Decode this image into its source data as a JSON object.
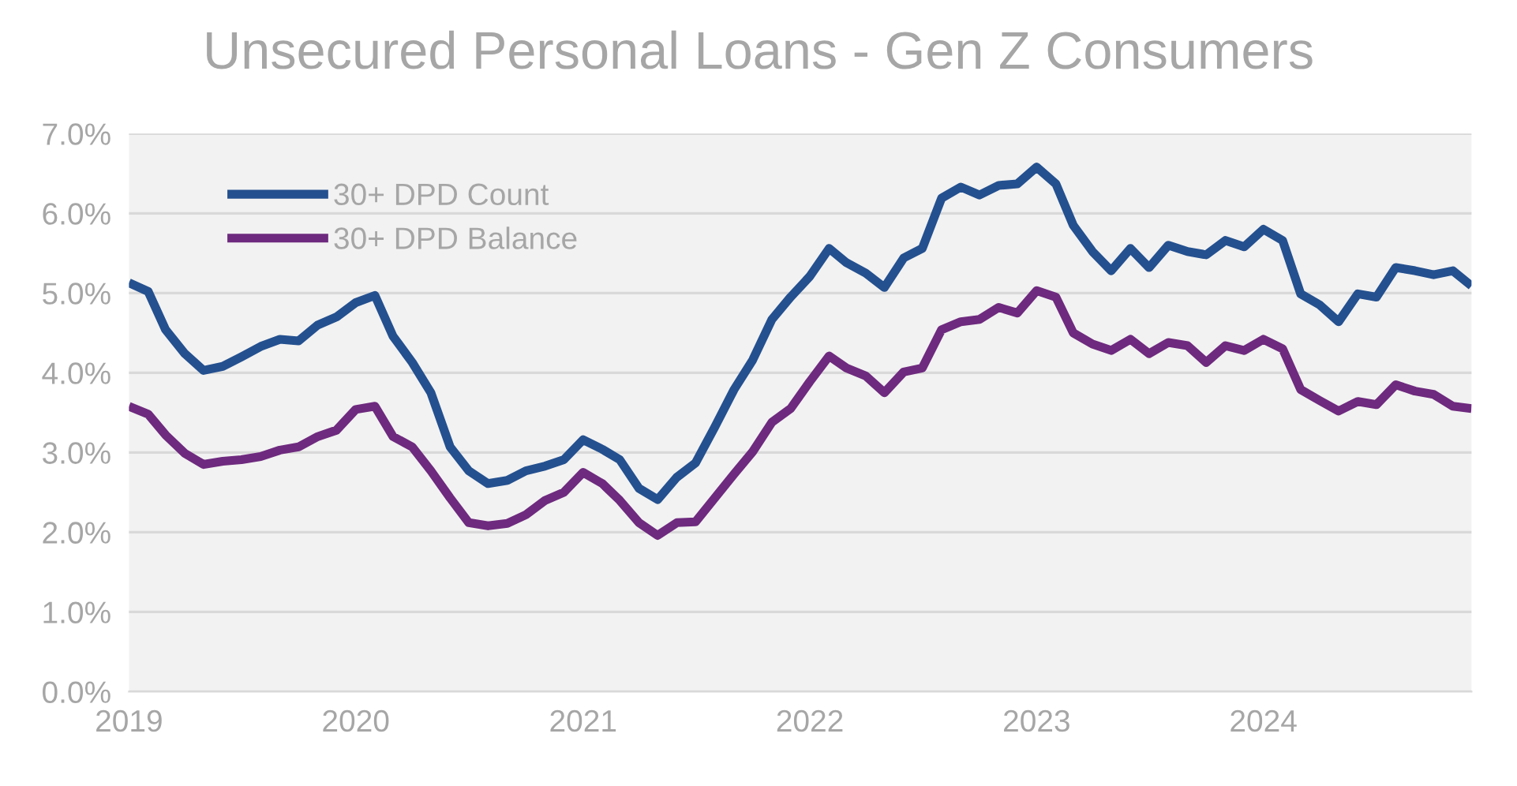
{
  "chart_data": {
    "type": "line",
    "title": "Unsecured Personal Loans - Gen Z Consumers",
    "x": [
      "2019-01",
      "2019-02",
      "2019-03",
      "2019-04",
      "2019-05",
      "2019-06",
      "2019-07",
      "2019-08",
      "2019-09",
      "2019-10",
      "2019-11",
      "2019-12",
      "2020-01",
      "2020-02",
      "2020-03",
      "2020-04",
      "2020-05",
      "2020-06",
      "2020-07",
      "2020-08",
      "2020-09",
      "2020-10",
      "2020-11",
      "2020-12",
      "2021-01",
      "2021-02",
      "2021-03",
      "2021-04",
      "2021-05",
      "2021-06",
      "2021-07",
      "2021-08",
      "2021-09",
      "2021-10",
      "2021-11",
      "2021-12",
      "2022-01",
      "2022-02",
      "2022-03",
      "2022-04",
      "2022-05",
      "2022-06",
      "2022-07",
      "2022-08",
      "2022-09",
      "2022-10",
      "2022-11",
      "2022-12",
      "2023-01",
      "2023-02",
      "2023-03",
      "2023-04",
      "2023-05",
      "2023-06",
      "2023-07",
      "2023-08",
      "2023-09",
      "2023-10",
      "2023-11",
      "2023-12",
      "2024-01",
      "2024-02",
      "2024-03",
      "2024-04",
      "2024-05",
      "2024-06",
      "2024-07",
      "2024-08",
      "2024-09",
      "2024-10",
      "2024-11",
      "2024-12"
    ],
    "series": [
      {
        "name": "30+ DPD Count",
        "color": "#24508f",
        "values": [
          5.13,
          5.02,
          4.54,
          4.24,
          4.03,
          4.08,
          4.2,
          4.33,
          4.42,
          4.4,
          4.6,
          4.7,
          4.88,
          4.97,
          4.46,
          4.13,
          3.75,
          3.07,
          2.77,
          2.61,
          2.65,
          2.77,
          2.83,
          2.91,
          3.16,
          3.04,
          2.91,
          2.55,
          2.41,
          2.69,
          2.87,
          3.32,
          3.79,
          4.16,
          4.67,
          4.95,
          5.21,
          5.56,
          5.38,
          5.25,
          5.07,
          5.44,
          5.56,
          6.19,
          6.33,
          6.23,
          6.35,
          6.37,
          6.58,
          6.37,
          5.85,
          5.52,
          5.28,
          5.56,
          5.32,
          5.6,
          5.52,
          5.48,
          5.66,
          5.58,
          5.8,
          5.66,
          4.99,
          4.85,
          4.64,
          4.99,
          4.95,
          5.32,
          5.28,
          5.23,
          5.28,
          5.09
        ]
      },
      {
        "name": "30+ DPD Balance",
        "color": "#6e2a7e",
        "values": [
          3.58,
          3.48,
          3.22,
          2.99,
          2.85,
          2.89,
          2.91,
          2.95,
          3.03,
          3.07,
          3.2,
          3.28,
          3.54,
          3.58,
          3.2,
          3.07,
          2.77,
          2.43,
          2.12,
          2.08,
          2.11,
          2.22,
          2.4,
          2.5,
          2.75,
          2.61,
          2.4,
          2.12,
          1.96,
          2.12,
          2.13,
          2.43,
          2.73,
          3.01,
          3.38,
          3.55,
          3.89,
          4.21,
          4.06,
          3.96,
          3.75,
          4.01,
          4.06,
          4.54,
          4.64,
          4.67,
          4.82,
          4.75,
          5.03,
          4.95,
          4.5,
          4.36,
          4.28,
          4.42,
          4.24,
          4.38,
          4.34,
          4.13,
          4.34,
          4.28,
          4.42,
          4.3,
          3.79,
          3.65,
          3.52,
          3.64,
          3.6,
          3.85,
          3.77,
          3.73,
          3.58,
          3.55
        ]
      }
    ],
    "xlim": [
      "2019-01",
      "2024-12"
    ],
    "xticks": [
      {
        "value": "2019-01",
        "label": "2019"
      },
      {
        "value": "2020-01",
        "label": "2020"
      },
      {
        "value": "2021-01",
        "label": "2021"
      },
      {
        "value": "2022-01",
        "label": "2022"
      },
      {
        "value": "2023-01",
        "label": "2023"
      },
      {
        "value": "2024-01",
        "label": "2024"
      }
    ],
    "ylim": [
      0,
      7
    ],
    "yticks": [
      {
        "value": 0,
        "label": "0.0%"
      },
      {
        "value": 1,
        "label": "1.0%"
      },
      {
        "value": 2,
        "label": "2.0%"
      },
      {
        "value": 3,
        "label": "3.0%"
      },
      {
        "value": 4,
        "label": "4.0%"
      },
      {
        "value": 5,
        "label": "5.0%"
      },
      {
        "value": 6,
        "label": "6.0%"
      },
      {
        "value": 7,
        "label": "7.0%"
      }
    ],
    "grid": "y",
    "legend": "top left",
    "line_style": "solid",
    "marker": "none"
  }
}
